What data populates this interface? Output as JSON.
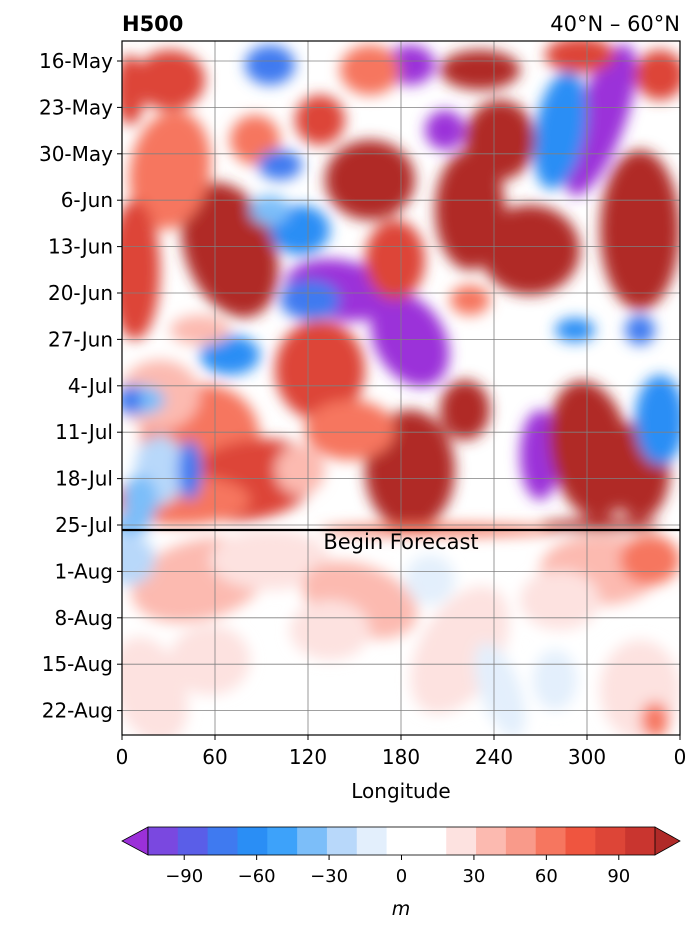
{
  "chart_data": {
    "type": "heatmap",
    "title_left": "H500",
    "title_right": "40°N – 60°N",
    "xlabel": "Longitude",
    "x_ticks": [
      "0",
      "60",
      "120",
      "180",
      "240",
      "300",
      "0"
    ],
    "x_tick_values": [
      0,
      60,
      120,
      180,
      240,
      300,
      360
    ],
    "xlim": [
      0,
      360
    ],
    "y_ticks": [
      "16-May",
      "23-May",
      "30-May",
      "6-Jun",
      "13-Jun",
      "20-Jun",
      "27-Jun",
      "4-Jul",
      "11-Jul",
      "18-Jul",
      "25-Jul",
      "1-Aug",
      "8-Aug",
      "15-Aug",
      "22-Aug"
    ],
    "y_reversed": true,
    "grid": true,
    "forecast_line": {
      "date": "24-Jul",
      "label": "Begin Forecast"
    },
    "colorbar": {
      "label": "m",
      "tick_labels": [
        "−90",
        "−60",
        "−30",
        "0",
        "30",
        "60",
        "90"
      ],
      "tick_values": [
        -90,
        -60,
        -30,
        0,
        30,
        60,
        90
      ],
      "levels": [
        -105,
        -90,
        -75,
        -60,
        -45,
        -30,
        -15,
        0,
        15,
        30,
        45,
        60,
        75,
        90,
        105
      ],
      "colors": [
        "#9b30d9",
        "#7a48e0",
        "#5a5ee8",
        "#3f7af0",
        "#2a8ef5",
        "#3da2fa",
        "#7cbef9",
        "#b8d8fa",
        "#e3effc",
        "#ffffff",
        "#ffffff",
        "#fde2e0",
        "#fcbab0",
        "#f99a8a",
        "#f6765f",
        "#ef553f",
        "#dd4537",
        "#c9352f",
        "#b02a28"
      ],
      "extend": "both"
    }
  }
}
